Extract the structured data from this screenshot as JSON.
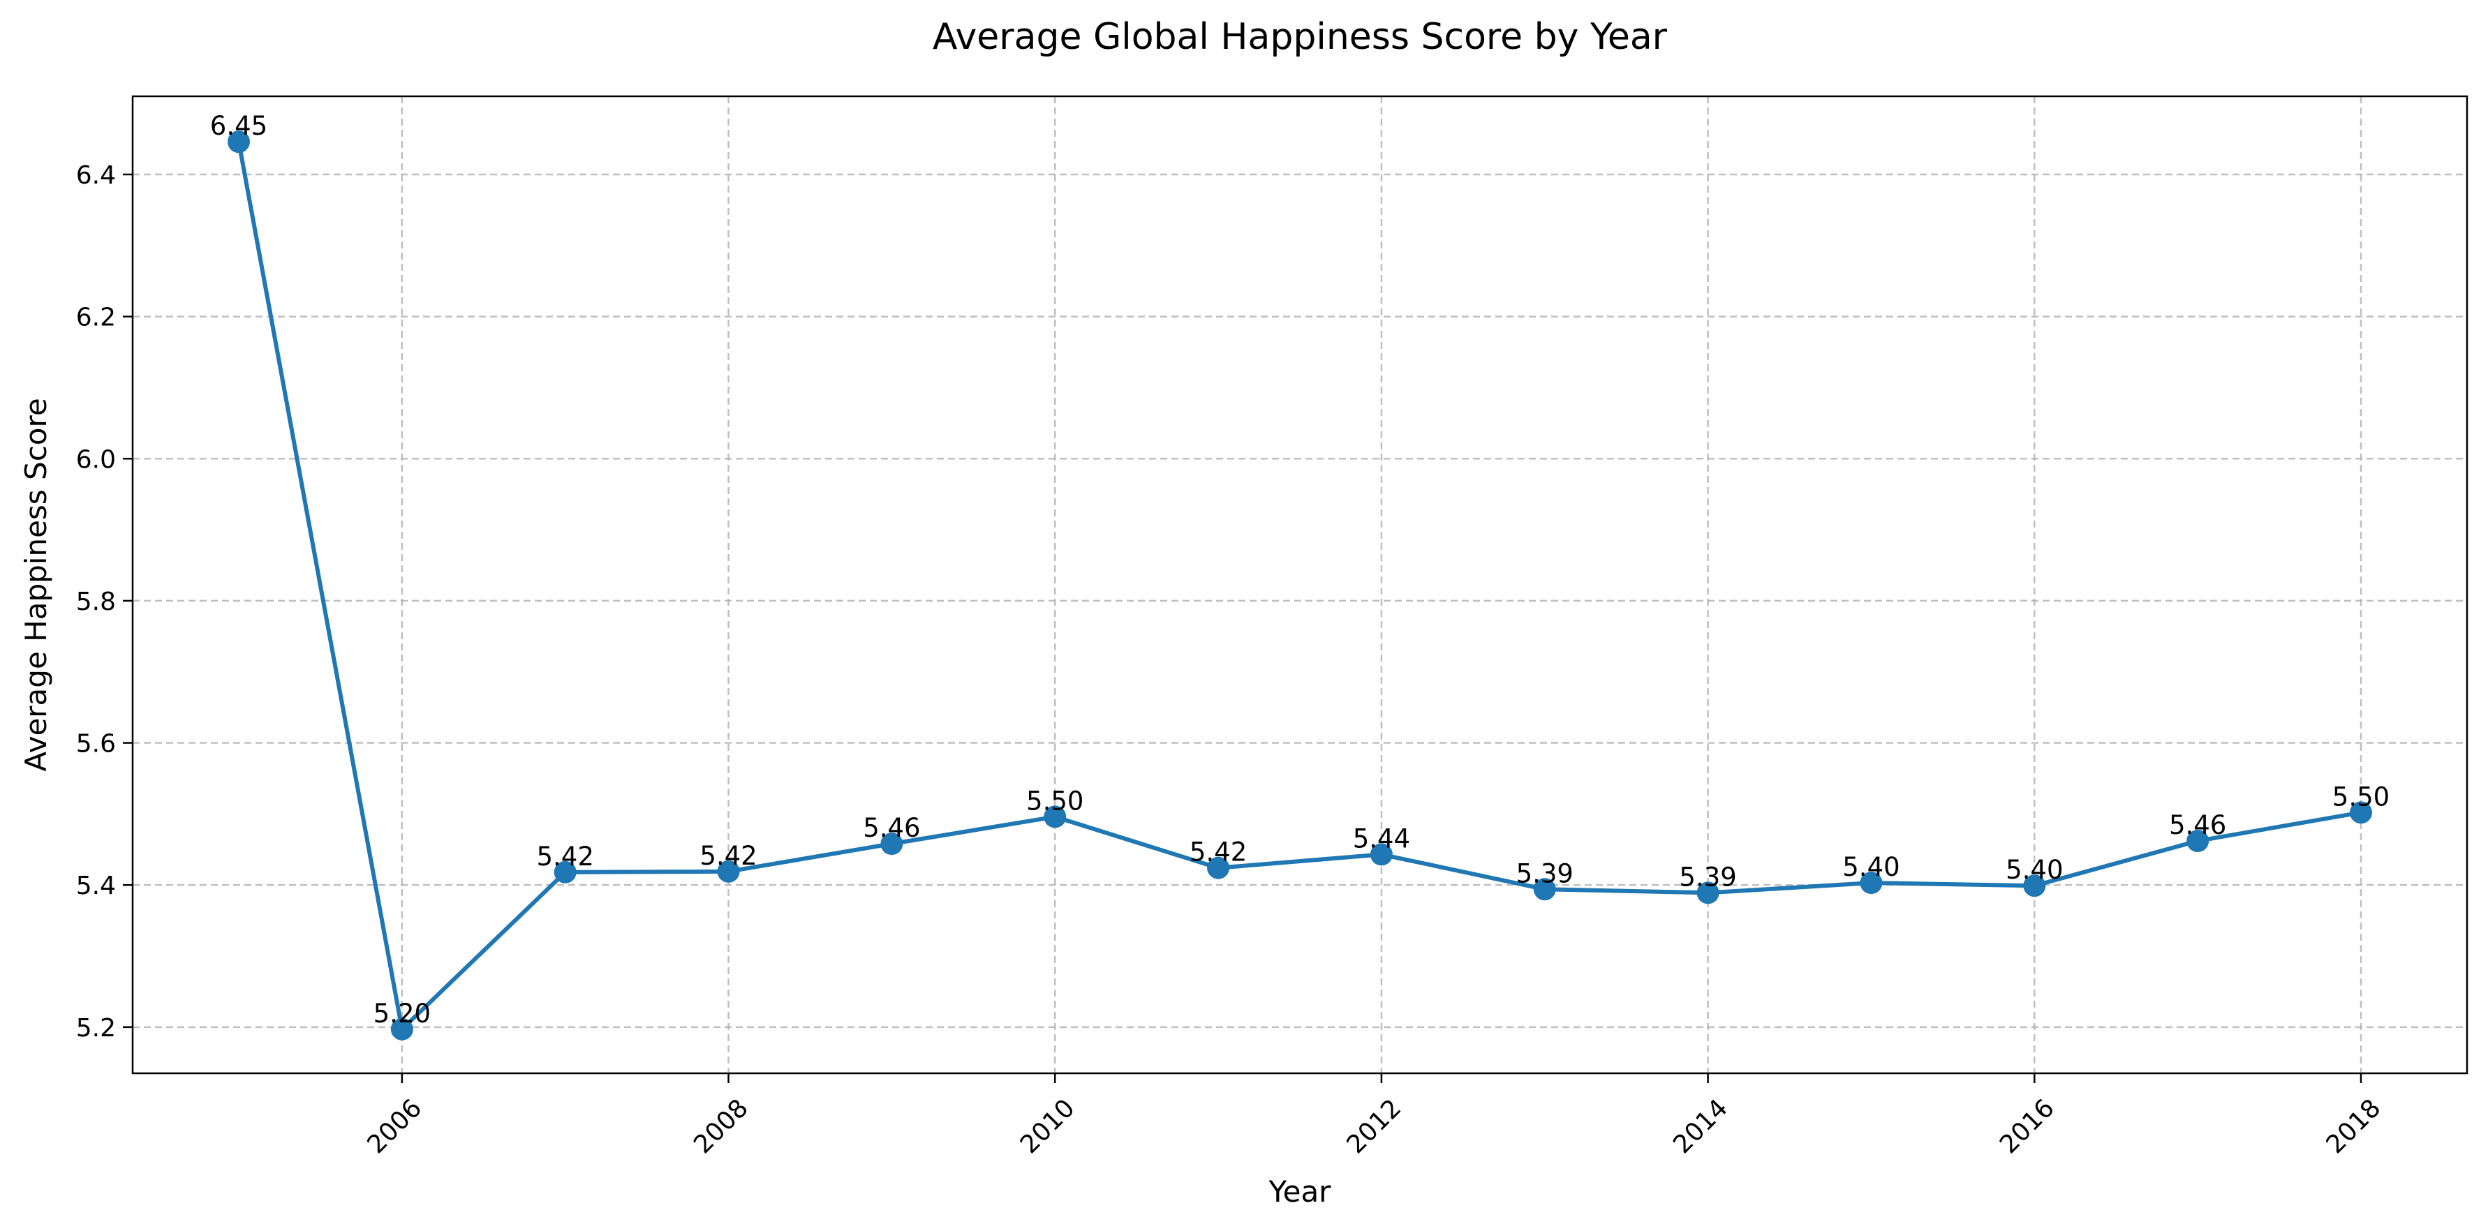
{
  "chart_data": {
    "type": "line",
    "title": "Average Global Happiness Score by Year",
    "xlabel": "Year",
    "ylabel": "Average Happiness Score",
    "x": [
      2005,
      2006,
      2007,
      2008,
      2009,
      2010,
      2011,
      2012,
      2013,
      2014,
      2015,
      2016,
      2017,
      2018
    ],
    "series": [
      {
        "name": "",
        "values": [
          6.446,
          5.197,
          5.418,
          5.419,
          5.458,
          5.496,
          5.424,
          5.443,
          5.394,
          5.389,
          5.403,
          5.399,
          5.462,
          5.502
        ],
        "labels": [
          "6.45",
          "5.20",
          "5.42",
          "5.42",
          "5.46",
          "5.50",
          "5.42",
          "5.44",
          "5.39",
          "5.39",
          "5.40",
          "5.40",
          "5.46",
          "5.50"
        ],
        "color": "#1f77b4"
      }
    ],
    "xlim": [
      2004.35,
      2018.65
    ],
    "ylim": [
      5.135,
      6.51
    ],
    "xticks": [
      2006,
      2008,
      2010,
      2012,
      2014,
      2016,
      2018
    ],
    "xtick_labels": [
      "2006",
      "2008",
      "2010",
      "2012",
      "2014",
      "2016",
      "2018"
    ],
    "yticks": [
      5.2,
      5.4,
      5.6,
      5.8,
      6.0,
      6.2,
      6.4
    ],
    "ytick_labels": [
      "5.2",
      "5.4",
      "5.6",
      "5.8",
      "6.0",
      "6.2",
      "6.4"
    ],
    "grid": true,
    "marker": "circle",
    "xtick_rotation": 45
  }
}
